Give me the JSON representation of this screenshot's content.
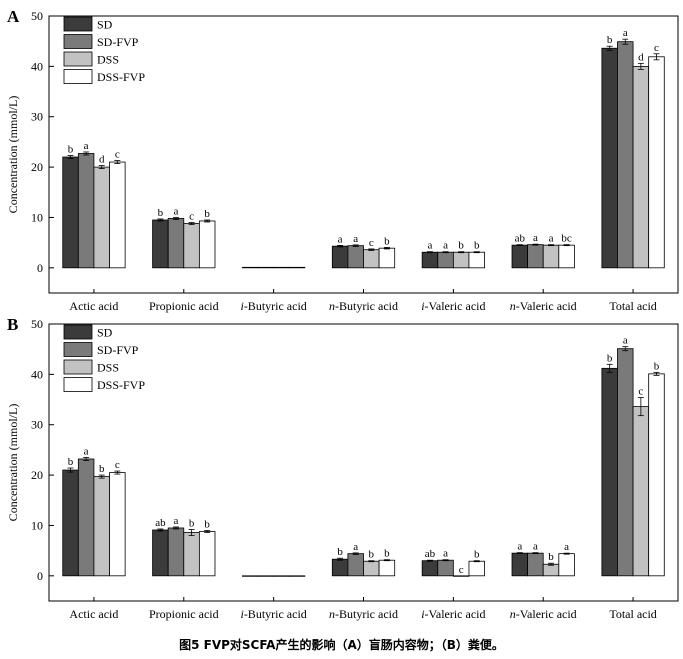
{
  "caption": "图5 FVP对SCFA产生的影响（A）盲肠内容物；（B）粪便。",
  "series_colors": [
    "#3b3b3b",
    "#7a7a7a",
    "#c2c2c2",
    "#ffffff"
  ],
  "chart_data": [
    {
      "type": "bar",
      "panel_label": "A",
      "ylabel": "Concentration (mmol/L)",
      "ylim": [
        -5,
        50
      ],
      "yticks": [
        0,
        10,
        20,
        30,
        40,
        50
      ],
      "legend_position": "top-left",
      "categories": [
        {
          "prefix": "",
          "name": "Actic acid"
        },
        {
          "prefix": "",
          "name": "Propionic acid"
        },
        {
          "prefix": "i",
          "name": "-Butyric acid"
        },
        {
          "prefix": "n",
          "name": "-Butyric acid"
        },
        {
          "prefix": "i",
          "name": "-Valeric acid"
        },
        {
          "prefix": "n",
          "name": "-Valeric acid"
        },
        {
          "prefix": "",
          "name": "Total acid"
        }
      ],
      "series": [
        {
          "name": "SD",
          "values": [
            22.0,
            9.5,
            0.1,
            4.3,
            3.1,
            4.5,
            43.6
          ],
          "errors": [
            0.3,
            0.2,
            0,
            0.15,
            0.1,
            0.1,
            0.4
          ],
          "letters": [
            "b",
            "b",
            "",
            "a",
            "a",
            "ab",
            "b"
          ]
        },
        {
          "name": "SD-FVP",
          "values": [
            22.7,
            9.8,
            0.1,
            4.4,
            3.1,
            4.6,
            44.9
          ],
          "errors": [
            0.3,
            0.2,
            0,
            0.15,
            0.1,
            0.1,
            0.5
          ],
          "letters": [
            "a",
            "a",
            "",
            "a",
            "a",
            "a",
            "a"
          ]
        },
        {
          "name": "DSS",
          "values": [
            20.0,
            8.8,
            0.1,
            3.6,
            3.1,
            4.5,
            40.0
          ],
          "errors": [
            0.3,
            0.2,
            0,
            0.15,
            0.1,
            0.1,
            0.6
          ],
          "letters": [
            "d",
            "c",
            "",
            "c",
            "b",
            "a",
            "d"
          ]
        },
        {
          "name": "DSS-FVP",
          "values": [
            21.0,
            9.3,
            0.1,
            3.9,
            3.1,
            4.5,
            41.9
          ],
          "errors": [
            0.3,
            0.2,
            0,
            0.15,
            0.1,
            0.1,
            0.6
          ],
          "letters": [
            "c",
            "b",
            "",
            "b",
            "b",
            "bc",
            "c"
          ]
        }
      ]
    },
    {
      "type": "bar",
      "panel_label": "B",
      "ylabel": "Concentration (mmol/L)",
      "ylim": [
        -5,
        50
      ],
      "yticks": [
        0,
        10,
        20,
        30,
        40,
        50
      ],
      "legend_position": "top-left",
      "categories": [
        {
          "prefix": "",
          "name": "Actic acid"
        },
        {
          "prefix": "",
          "name": "Propionic acid"
        },
        {
          "prefix": "i",
          "name": "-Butyric acid"
        },
        {
          "prefix": "n",
          "name": "-Butyric acid"
        },
        {
          "prefix": "i",
          "name": "-Valeric acid"
        },
        {
          "prefix": "n",
          "name": "-Valeric acid"
        },
        {
          "prefix": "",
          "name": "Total acid"
        }
      ],
      "series": [
        {
          "name": "SD",
          "values": [
            21.0,
            9.1,
            0.0,
            3.3,
            3.0,
            4.5,
            41.2
          ],
          "errors": [
            0.4,
            0.2,
            0,
            0.2,
            0.1,
            0.1,
            0.8
          ],
          "letters": [
            "b",
            "ab",
            "",
            "b",
            "ab",
            "a",
            "b"
          ]
        },
        {
          "name": "SD-FVP",
          "values": [
            23.2,
            9.5,
            0.0,
            4.4,
            3.1,
            4.5,
            45.1
          ],
          "errors": [
            0.3,
            0.2,
            0,
            0.15,
            0.1,
            0.1,
            0.4
          ],
          "letters": [
            "a",
            "a",
            "",
            "a",
            "a",
            "a",
            "a"
          ]
        },
        {
          "name": "DSS",
          "values": [
            19.7,
            8.6,
            0.0,
            2.9,
            0.0,
            2.3,
            33.6
          ],
          "errors": [
            0.3,
            0.6,
            0,
            0.1,
            0,
            0.2,
            1.8
          ],
          "letters": [
            "b",
            "b",
            "",
            "b",
            "c",
            "b",
            "c"
          ]
        },
        {
          "name": "DSS-FVP",
          "values": [
            20.5,
            8.8,
            0.0,
            3.1,
            2.9,
            4.4,
            40.1
          ],
          "errors": [
            0.3,
            0.2,
            0,
            0.1,
            0.1,
            0.1,
            0.3
          ],
          "letters": [
            "c",
            "b",
            "",
            "b",
            "b",
            "a",
            "b"
          ]
        }
      ]
    }
  ]
}
